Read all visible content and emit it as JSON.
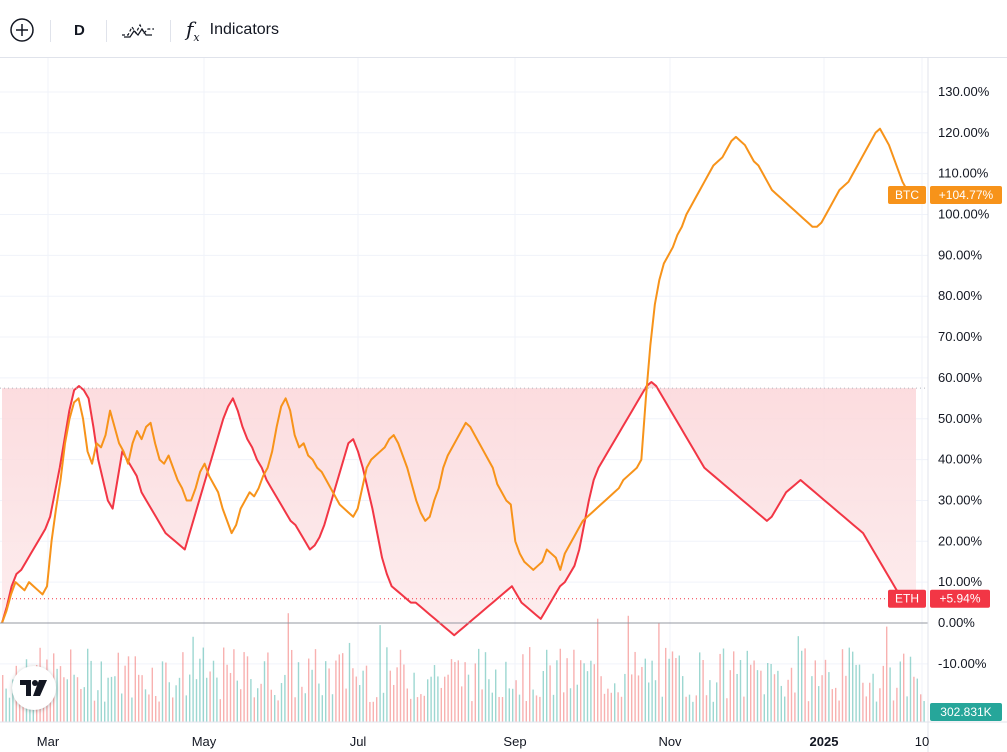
{
  "toolbar": {
    "add_symbol_icon": "plus-circle-icon",
    "interval": "D",
    "compare_icon": "compare-icon",
    "indicators_label": "Indicators"
  },
  "brand": {
    "logo_icon": "tradingview-logo-icon"
  },
  "chart_data": {
    "type": "line",
    "y_axis_unit": "%",
    "y_ticks": [
      "130.00%",
      "120.00%",
      "110.00%",
      "100.00%",
      "90.00%",
      "80.00%",
      "70.00%",
      "60.00%",
      "50.00%",
      "40.00%",
      "30.00%",
      "20.00%",
      "10.00%",
      "0.00%",
      "-10.00%"
    ],
    "y_tick_values": [
      130,
      120,
      110,
      100,
      90,
      80,
      70,
      60,
      50,
      40,
      30,
      20,
      10,
      0,
      -10
    ],
    "ylim": [
      -20,
      137
    ],
    "x_ticks": [
      {
        "label": "Mar",
        "index": 0
      },
      {
        "label": "May",
        "index": 1
      },
      {
        "label": "Jul",
        "index": 2
      },
      {
        "label": "Sep",
        "index": 3
      },
      {
        "label": "Nov",
        "index": 4
      },
      {
        "label": "2025",
        "index": 5,
        "bold": true
      },
      {
        "label": "10",
        "index": 6
      }
    ],
    "series": [
      {
        "name": "BTC",
        "color": "#f7931a",
        "label": "BTC",
        "last_value_label": "+104.77%",
        "last_value": 104.77,
        "values": [
          0,
          3,
          7,
          10,
          9,
          8,
          10,
          9,
          8,
          7,
          9,
          20,
          28,
          35,
          44,
          50,
          54,
          55,
          50,
          42,
          39,
          44,
          43,
          46,
          52,
          48,
          44,
          42,
          39,
          44,
          47,
          45,
          48,
          49,
          44,
          40,
          39,
          41,
          38,
          35,
          33,
          30,
          30,
          33,
          37,
          39,
          36,
          34,
          32,
          28,
          25,
          22,
          24,
          28,
          30,
          32,
          31,
          33,
          36,
          38,
          42,
          48,
          53,
          55,
          52,
          46,
          43,
          44,
          41,
          40,
          38,
          37,
          35,
          33,
          31,
          29,
          28,
          27,
          26,
          28,
          33,
          38,
          40,
          41,
          42,
          43,
          45,
          46,
          44,
          41,
          38,
          34,
          30,
          27,
          25,
          26,
          30,
          33,
          38,
          41,
          43,
          45,
          47,
          49,
          48,
          46,
          44,
          42,
          40,
          38,
          34,
          32,
          30,
          29,
          20,
          17,
          15,
          14,
          13,
          14,
          15,
          18,
          17,
          16,
          13,
          17,
          19,
          21,
          23,
          25,
          26,
          27,
          28,
          29,
          30,
          31,
          32,
          33,
          35,
          36,
          37,
          38,
          40,
          55,
          68,
          78,
          84,
          88,
          90,
          92,
          95,
          97,
          100,
          102,
          104,
          106,
          108,
          110,
          112,
          113,
          114,
          116,
          118,
          119,
          118,
          117,
          115,
          113,
          112,
          110,
          108,
          106,
          105,
          104,
          103,
          102,
          101,
          100,
          99,
          98,
          97,
          97,
          98,
          100,
          102,
          104,
          106,
          107,
          108,
          110,
          112,
          114,
          116,
          118,
          120,
          121,
          119,
          117,
          114,
          111,
          108,
          106,
          105,
          104.77
        ]
      },
      {
        "name": "ETH",
        "color": "#f23645",
        "label": "ETH",
        "last_value_label": "+5.94%",
        "last_value": 5.94,
        "values": [
          0,
          4,
          9,
          12,
          13,
          15,
          17,
          19,
          21,
          23,
          26,
          32,
          38,
          45,
          52,
          57,
          58,
          57,
          55,
          48,
          40,
          35,
          30,
          28,
          35,
          42,
          40,
          38,
          36,
          32,
          30,
          28,
          26,
          24,
          22,
          21,
          20,
          19,
          18,
          22,
          26,
          30,
          34,
          38,
          42,
          46,
          50,
          53,
          55,
          52,
          48,
          45,
          43,
          40,
          38,
          35,
          33,
          31,
          29,
          27,
          25,
          24,
          22,
          20,
          18,
          19,
          21,
          24,
          28,
          32,
          36,
          40,
          44,
          45,
          42,
          38,
          33,
          28,
          22,
          16,
          12,
          9,
          8,
          7,
          6,
          5,
          5,
          4,
          3,
          2,
          1,
          0,
          -1,
          -2,
          -3,
          -2,
          -1,
          0,
          1,
          2,
          3,
          4,
          5,
          6,
          7,
          8,
          9,
          7,
          5,
          4,
          3,
          2,
          1,
          3,
          5,
          7,
          9,
          10,
          12,
          14,
          18,
          24,
          30,
          35,
          38,
          40,
          42,
          44,
          46,
          48,
          50,
          52,
          54,
          56,
          58,
          59,
          58,
          56,
          54,
          52,
          50,
          48,
          46,
          44,
          42,
          40,
          38,
          37,
          36,
          35,
          34,
          33,
          32,
          31,
          30,
          29,
          28,
          27,
          26,
          25,
          26,
          28,
          30,
          32,
          33,
          34,
          35,
          34,
          33,
          32,
          31,
          30,
          29,
          28,
          27,
          26,
          25,
          24,
          23,
          22,
          20,
          18,
          16,
          14,
          12,
          10,
          8,
          7,
          6.5,
          6,
          5.94
        ]
      }
    ],
    "volume": {
      "last_value_label": "302.831K",
      "up_color": "#26a69a",
      "down_color": "#ef5350"
    },
    "reference_line_value": 57.5,
    "grid": true,
    "legend": "none"
  }
}
